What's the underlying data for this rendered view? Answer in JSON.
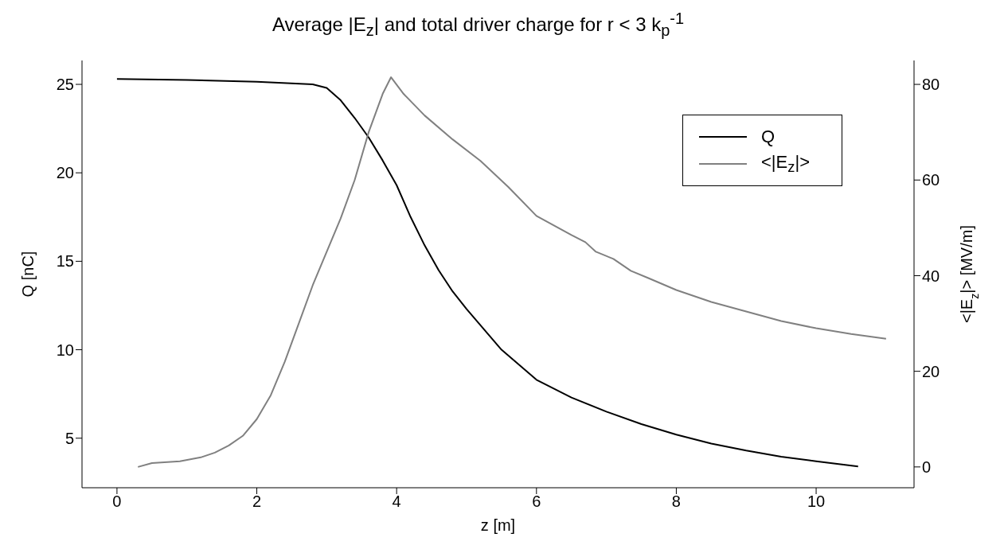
{
  "chart_data": {
    "type": "line",
    "title": "Average |E$_{z}$| and total driver charge for r < 3 k$_{p}$$^{-1}$",
    "xlabel": "z [m]",
    "ylabel": "Q [nC]",
    "y2label": "<|E$_{z}$|> [MV/m]",
    "xlim": [
      -0.5,
      11.4
    ],
    "xticks": [
      0,
      2,
      4,
      6,
      8,
      10
    ],
    "ylim": [
      2.2,
      26.35
    ],
    "yticks": [
      5,
      10,
      15,
      20,
      25
    ],
    "y2lim": [
      -4.35,
      85
    ],
    "y2ticks": [
      0,
      20,
      40,
      60,
      80
    ],
    "grid": false,
    "legend": "top right",
    "marker": "none",
    "line_style": "solid",
    "series": [
      {
        "name": "Q",
        "color": "#000000",
        "x": [
          0,
          1,
          2,
          2.8,
          3.0,
          3.2,
          3.4,
          3.6,
          3.8,
          4.0,
          4.2,
          4.4,
          4.6,
          4.8,
          5.0,
          5.5,
          6.0,
          6.5,
          7.0,
          7.5,
          8.0,
          8.5,
          9.0,
          9.5,
          10.0,
          10.6
        ],
        "values": [
          25.3,
          25.25,
          25.15,
          25.0,
          24.8,
          24.1,
          23.1,
          22.0,
          20.7,
          19.3,
          17.5,
          15.9,
          14.5,
          13.3,
          12.3,
          10.0,
          8.3,
          7.3,
          6.5,
          5.8,
          5.2,
          4.7,
          4.3,
          3.95,
          3.7,
          3.4
        ]
      },
      {
        "name": "<|E$_{z}$|>",
        "color": "#808080",
        "axis": "y2",
        "x": [
          0.3,
          0.5,
          0.9,
          1.2,
          1.4,
          1.6,
          1.8,
          2.0,
          2.2,
          2.4,
          2.6,
          2.8,
          3.0,
          3.2,
          3.4,
          3.6,
          3.8,
          3.92,
          4.1,
          4.4,
          4.8,
          5.2,
          5.6,
          6.0,
          6.5,
          6.7,
          6.85,
          7.1,
          7.35,
          7.6,
          8.0,
          8.5,
          9.0,
          9.5,
          10.0,
          10.5,
          11.0
        ],
        "values": [
          0,
          0.8,
          1.2,
          2,
          3,
          4.5,
          6.5,
          10,
          15,
          22,
          30,
          38,
          45,
          52,
          60,
          70,
          78,
          81.5,
          78,
          73.5,
          68.5,
          64,
          58.5,
          52.5,
          48.5,
          47,
          45,
          43.5,
          41,
          39.5,
          37,
          34.5,
          32.5,
          30.5,
          29,
          27.8,
          26.8
        ]
      }
    ]
  }
}
